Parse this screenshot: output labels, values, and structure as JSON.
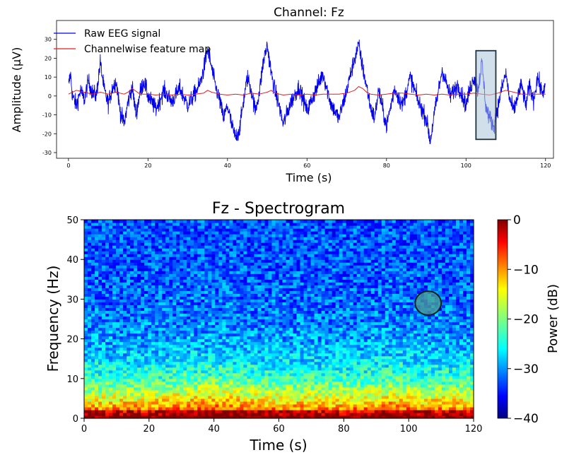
{
  "colors": {
    "eeg": "#0000ee",
    "feature": "#dd2222",
    "highlight_fill": "#a9c4d9",
    "highlight_stroke": "#1f3340",
    "axis": "#000000"
  },
  "chart_data": [
    {
      "type": "line",
      "title": "Channel: Fz",
      "xlabel": "Time (s)",
      "ylabel": "Amplitude (µV)",
      "xlim": [
        -3,
        122
      ],
      "ylim": [
        -33,
        40
      ],
      "xticks": [
        0,
        20,
        40,
        60,
        80,
        100,
        120
      ],
      "yticks": [
        -30,
        -20,
        -10,
        0,
        10,
        20,
        30
      ],
      "legend_position": "top-left",
      "series": [
        {
          "name": "Raw EEG signal",
          "color": "#0000ee",
          "style": "noisy",
          "x": [
            0,
            0.5,
            1,
            2,
            3,
            4,
            5,
            6,
            7,
            8,
            9,
            10,
            11,
            12,
            13,
            14,
            15,
            16,
            17,
            18,
            19,
            20,
            22,
            24,
            26,
            28,
            30,
            32,
            33,
            34,
            35,
            36,
            37,
            38,
            39,
            40,
            41,
            42,
            43,
            44,
            45,
            46,
            47,
            48,
            49,
            50,
            51,
            52,
            53,
            54,
            56,
            58,
            60,
            62,
            64,
            66,
            68,
            70,
            71,
            72,
            73,
            74,
            75,
            76,
            77,
            78,
            80,
            82,
            84,
            86,
            88,
            90,
            91,
            92,
            93,
            94,
            96,
            98,
            100,
            101,
            102,
            103,
            104,
            105,
            106,
            107,
            108,
            109,
            110,
            111,
            112,
            113,
            114,
            115,
            116,
            117,
            118,
            119,
            120
          ],
          "y": [
            5,
            12,
            0,
            -5,
            3,
            -2,
            8,
            2,
            0,
            18,
            3,
            -4,
            4,
            8,
            -8,
            -15,
            -3,
            5,
            -10,
            2,
            8,
            0,
            -7,
            3,
            -3,
            4,
            -5,
            2,
            6,
            14,
            25,
            15,
            5,
            -2,
            -12,
            -5,
            -15,
            -22,
            -18,
            -3,
            10,
            3,
            -8,
            2,
            18,
            27,
            12,
            2,
            -5,
            -15,
            -3,
            5,
            -8,
            2,
            12,
            -4,
            -12,
            3,
            12,
            20,
            27,
            15,
            5,
            -6,
            -12,
            3,
            -16,
            4,
            -5,
            10,
            -3,
            -12,
            -24,
            -10,
            2,
            14,
            0,
            6,
            -5,
            4,
            10,
            3,
            18,
            -6,
            -12,
            -16,
            -6,
            4,
            12,
            -2,
            -8,
            0,
            6,
            -5,
            5,
            -2,
            10,
            2,
            4
          ]
        },
        {
          "name": "Channelwise feature map",
          "color": "#dd2222",
          "style": "smooth",
          "x": [
            0,
            2,
            4,
            6,
            8,
            10,
            12,
            14,
            15,
            16,
            18,
            20,
            22,
            24,
            26,
            28,
            30,
            32,
            34,
            35,
            36,
            38,
            40,
            42,
            44,
            46,
            48,
            50,
            51,
            52,
            54,
            56,
            58,
            60,
            62,
            64,
            66,
            68,
            70,
            72,
            73,
            74,
            75,
            76,
            78,
            80,
            82,
            84,
            86,
            88,
            90,
            92,
            94,
            96,
            98,
            100,
            102,
            104,
            106,
            108,
            110,
            112,
            114,
            116,
            118,
            120
          ],
          "y": [
            1,
            3,
            2,
            1,
            2,
            1,
            2,
            1,
            2,
            4,
            1,
            1,
            0.5,
            1,
            0.5,
            1,
            0.5,
            1,
            1.5,
            3,
            2,
            1,
            0.5,
            1,
            0.5,
            1.5,
            1,
            2,
            3,
            1.5,
            0.5,
            1,
            0.5,
            1,
            0.5,
            1,
            1,
            1,
            1.5,
            3,
            5,
            4,
            2,
            1,
            0.5,
            1,
            1.5,
            1.5,
            1,
            0.5,
            1,
            0.5,
            1,
            0.5,
            1,
            1,
            1.5,
            1,
            0.5,
            1.5,
            3,
            2,
            1,
            1,
            1,
            1
          ]
        }
      ],
      "annotations": [
        {
          "type": "highlight-rectangle",
          "x_range": [
            102.5,
            107.5
          ],
          "y_range": [
            -23,
            24
          ]
        }
      ]
    },
    {
      "type": "heatmap",
      "title": "Fz - Spectrogram",
      "xlabel": "Time (s)",
      "ylabel": "Frequency (Hz)",
      "xlim": [
        0,
        120
      ],
      "ylim": [
        0,
        50
      ],
      "xticks": [
        0,
        20,
        40,
        60,
        80,
        100,
        120
      ],
      "yticks": [
        0,
        10,
        20,
        30,
        40,
        50
      ],
      "colormap": "jet",
      "colorbar": {
        "label": "Power (dB)",
        "range": [
          -40,
          0
        ],
        "ticks": [
          0,
          -10,
          -20,
          -30,
          -40
        ]
      },
      "annotations": [
        {
          "type": "highlight-ellipse",
          "center": [
            106,
            29
          ],
          "rx_s": 4,
          "ry_hz": 3
        }
      ]
    }
  ]
}
